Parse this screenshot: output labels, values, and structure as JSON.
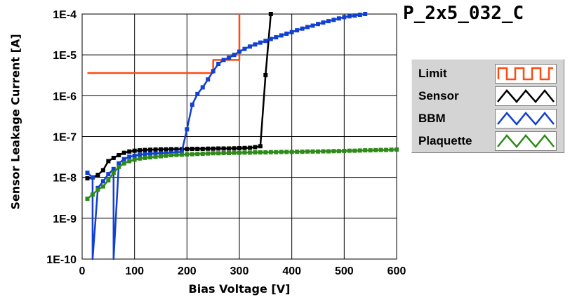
{
  "chart_data": {
    "type": "line",
    "title": "P_2x5_032_C",
    "xlabel": "Bias Voltage [V]",
    "ylabel": "Sensor Leakage Current [A]",
    "xlim": [
      0,
      600
    ],
    "ylim": [
      1e-10,
      0.0001
    ],
    "y_scale": "log",
    "grid": true,
    "legend_position": "right",
    "x_ticks": [
      "0",
      "100",
      "200",
      "300",
      "400",
      "500",
      "600"
    ],
    "x_tick_values": [
      0,
      100,
      200,
      300,
      400,
      500,
      600
    ],
    "y_ticks": [
      "1E-10",
      "1E-9",
      "1E-8",
      "1E-7",
      "1E-6",
      "1E-5",
      "1E-4"
    ],
    "y_tick_values": [
      1e-10,
      1e-09,
      1e-08,
      1e-07,
      1e-06,
      1e-05,
      0.0001
    ],
    "series": [
      {
        "name": "Limit",
        "color": "#ff4a10",
        "step": true,
        "markers": false,
        "x": [
          10,
          250,
          250,
          300,
          300
        ],
        "y": [
          3.6e-06,
          3.6e-06,
          7.5e-06,
          7.5e-06,
          0.0001
        ]
      },
      {
        "name": "Sensor",
        "color": "#000000",
        "markers": true,
        "x": [
          10,
          20,
          30,
          40,
          50,
          60,
          70,
          80,
          90,
          100,
          110,
          120,
          130,
          140,
          150,
          160,
          170,
          180,
          190,
          200,
          210,
          220,
          230,
          240,
          250,
          260,
          270,
          280,
          290,
          300,
          310,
          320,
          330,
          340,
          350,
          360
        ],
        "y": [
          9.5e-09,
          1e-08,
          1.15e-08,
          1.5e-08,
          2.5e-08,
          3e-08,
          3.5e-08,
          4e-08,
          4.3e-08,
          4.5e-08,
          4.6e-08,
          4.7e-08,
          4.75e-08,
          4.8e-08,
          4.85e-08,
          4.85e-08,
          4.9e-08,
          4.9e-08,
          4.9e-08,
          4.95e-08,
          5e-08,
          5e-08,
          5e-08,
          5.05e-08,
          5.05e-08,
          5.1e-08,
          5.1e-08,
          5.1e-08,
          5.15e-08,
          5.2e-08,
          5.25e-08,
          5.3e-08,
          5.5e-08,
          5.8e-08,
          3.2e-06,
          0.0001
        ]
      },
      {
        "name": "BBM",
        "color": "#1240d0",
        "markers": true,
        "x": [
          10,
          20,
          20,
          30,
          40,
          50,
          60,
          60,
          70,
          80,
          90,
          100,
          110,
          120,
          130,
          140,
          150,
          160,
          170,
          180,
          190,
          200,
          210,
          220,
          230,
          240,
          250,
          260,
          270,
          280,
          290,
          300,
          310,
          320,
          330,
          340,
          350,
          360,
          370,
          380,
          390,
          400,
          410,
          420,
          430,
          440,
          450,
          460,
          470,
          480,
          490,
          500,
          510,
          520,
          530,
          540
        ],
        "y": [
          1.3e-08,
          1e-08,
          1e-10,
          5.5e-09,
          8e-09,
          1.2e-08,
          1.6e-08,
          1e-10,
          2.2e-08,
          2.8e-08,
          3.2e-08,
          3.4e-08,
          3.6e-08,
          3.7e-08,
          3.8e-08,
          3.85e-08,
          3.9e-08,
          3.95e-08,
          4e-08,
          4.1e-08,
          4.2e-08,
          1.5e-07,
          6e-07,
          1.1e-06,
          1.6e-06,
          2.5e-06,
          4e-06,
          6e-06,
          7.5e-06,
          8.5e-06,
          1e-05,
          1.2e-05,
          1.4e-05,
          1.6e-05,
          1.8e-05,
          2e-05,
          2.2e-05,
          2.45e-05,
          2.7e-05,
          3e-05,
          3.3e-05,
          3.6e-05,
          4e-05,
          4.4e-05,
          4.8e-05,
          5.2e-05,
          5.7e-05,
          6.2e-05,
          6.7e-05,
          7.2e-05,
          7.8e-05,
          8.4e-05,
          8.8e-05,
          9.2e-05,
          9.6e-05,
          0.0001
        ]
      },
      {
        "name": "Plaquette",
        "color": "#2e8b1a",
        "markers": true,
        "x": [
          10,
          20,
          30,
          40,
          50,
          60,
          70,
          80,
          90,
          100,
          110,
          120,
          130,
          140,
          150,
          160,
          170,
          180,
          190,
          200,
          210,
          220,
          230,
          240,
          250,
          260,
          270,
          280,
          290,
          300,
          310,
          320,
          330,
          340,
          350,
          360,
          370,
          380,
          390,
          400,
          410,
          420,
          430,
          440,
          450,
          460,
          470,
          480,
          490,
          500,
          510,
          520,
          530,
          540,
          550,
          560,
          570,
          580,
          590,
          600
        ],
        "y": [
          3e-09,
          3.8e-09,
          5e-09,
          6e-09,
          8.5e-09,
          1.3e-08,
          1.8e-08,
          2.2e-08,
          2.5e-08,
          2.7e-08,
          2.9e-08,
          3e-08,
          3.1e-08,
          3.2e-08,
          3.3e-08,
          3.4e-08,
          3.5e-08,
          3.55e-08,
          3.6e-08,
          3.65e-08,
          3.7e-08,
          3.75e-08,
          3.8e-08,
          3.85e-08,
          3.9e-08,
          3.9e-08,
          3.95e-08,
          3.95e-08,
          4e-08,
          4e-08,
          4.05e-08,
          4.05e-08,
          4.1e-08,
          4.1e-08,
          4.1e-08,
          4.15e-08,
          4.15e-08,
          4.2e-08,
          4.2e-08,
          4.2e-08,
          4.25e-08,
          4.25e-08,
          4.3e-08,
          4.3e-08,
          4.3e-08,
          4.35e-08,
          4.35e-08,
          4.4e-08,
          4.4e-08,
          4.45e-08,
          4.5e-08,
          4.5e-08,
          4.55e-08,
          4.6e-08,
          4.6e-08,
          4.65e-08,
          4.7e-08,
          4.7e-08,
          4.75e-08,
          4.8e-08
        ]
      }
    ]
  }
}
